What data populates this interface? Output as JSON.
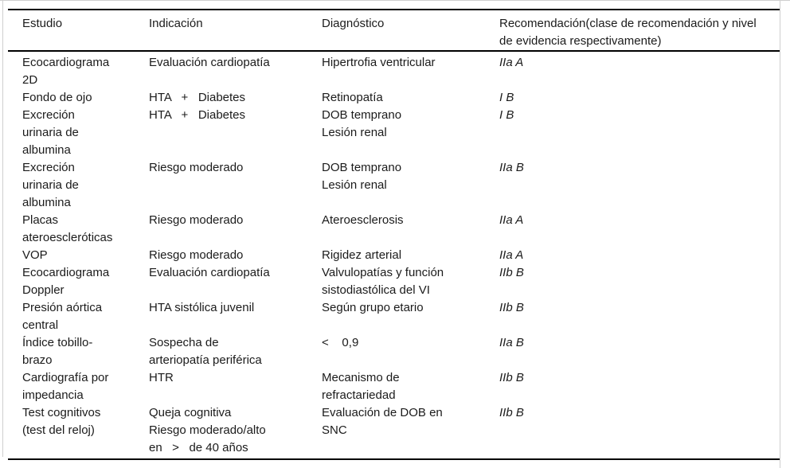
{
  "table": {
    "headers": [
      "Estudio",
      "Indicación",
      "Diagnóstico",
      "Recomendación(clase de recomendación y nivel\nde evidencia respectivamente)"
    ],
    "rows": [
      {
        "cells": [
          "Ecocardiograma\n2D",
          "Evaluación cardiopatía",
          "Hipertrofia ventricular",
          "IIa A"
        ]
      },
      {
        "cells": [
          "Fondo de ojo",
          "HTA   +   Diabetes",
          "Retinopatía",
          "I B"
        ]
      },
      {
        "cells": [
          "Excreción\nurinaria de\nalbumina",
          "HTA   +   Diabetes",
          "DOB temprano\nLesión renal",
          "I B"
        ]
      },
      {
        "cells": [
          "Excreción\nurinaria de\nalbumina",
          "Riesgo moderado",
          "DOB temprano\nLesión renal",
          "IIa B"
        ]
      },
      {
        "cells": [
          "Placas\nateroescleróticas",
          "Riesgo moderado",
          "Ateroesclerosis",
          "IIa A"
        ]
      },
      {
        "cells": [
          "VOP",
          "Riesgo moderado",
          "Rigidez arterial",
          "IIa A"
        ]
      },
      {
        "cells": [
          "Ecocardiograma\nDoppler",
          "Evaluación cardiopatía",
          "Valvulopatías y función\nsistodiastólica del VI",
          "IIb B"
        ]
      },
      {
        "cells": [
          "Presión aórtica\ncentral",
          "HTA sistólica juvenil",
          "Según grupo etario",
          "IIb B"
        ]
      },
      {
        "cells": [
          "Índice tobillo-\nbrazo",
          "Sospecha de\narteriopatía periférica",
          "<    0,9",
          "IIa B"
        ]
      },
      {
        "cells": [
          "Cardiografía por\nimpedancia",
          "HTR",
          "Mecanismo de\nrefractariedad",
          "IIb B"
        ]
      },
      {
        "cells": [
          "Test cognitivos\n(test del reloj)",
          "Queja cognitiva\nRiesgo moderado/alto\nen   >   de 40 años",
          "Evaluación de DOB en\nSNC",
          "IIb B"
        ]
      }
    ]
  },
  "colors": {
    "rule": "#000000",
    "frame": "#cfcfcf",
    "text": "#1b1b1b",
    "background": "#ffffff"
  }
}
